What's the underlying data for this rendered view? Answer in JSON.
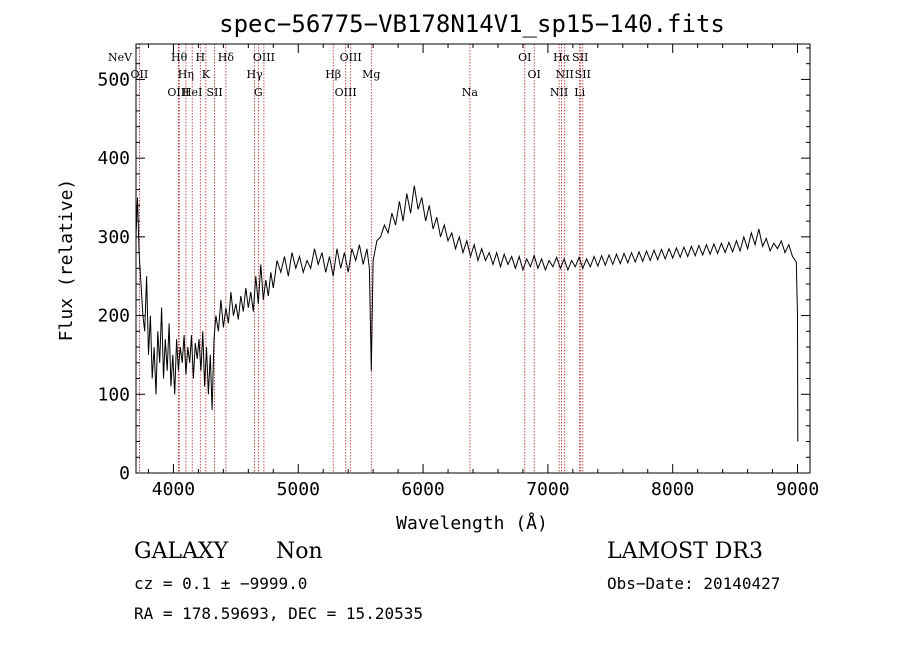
{
  "chart_data": {
    "type": "line",
    "title": "spec−56775−VB178N14V1_sp15−140.fits",
    "xlabel": "Wavelength (Å)",
    "ylabel": "Flux (relative)",
    "xlim": [
      3700,
      9100
    ],
    "ylim": [
      0,
      545
    ],
    "x_ticks": [
      4000,
      5000,
      6000,
      7000,
      8000,
      9000
    ],
    "y_ticks": [
      0,
      100,
      200,
      300,
      400,
      500
    ],
    "line_color": "#000000",
    "marker_color": "#b22222",
    "spectrum": [
      [
        3700,
        300
      ],
      [
        3712,
        350
      ],
      [
        3725,
        280
      ],
      [
        3740,
        240
      ],
      [
        3755,
        200
      ],
      [
        3770,
        180
      ],
      [
        3785,
        250
      ],
      [
        3800,
        150
      ],
      [
        3815,
        200
      ],
      [
        3830,
        120
      ],
      [
        3845,
        160
      ],
      [
        3860,
        100
      ],
      [
        3875,
        180
      ],
      [
        3890,
        140
      ],
      [
        3905,
        210
      ],
      [
        3920,
        120
      ],
      [
        3935,
        170
      ],
      [
        3950,
        130
      ],
      [
        3965,
        190
      ],
      [
        3980,
        110
      ],
      [
        3995,
        150
      ],
      [
        4010,
        100
      ],
      [
        4025,
        170
      ],
      [
        4040,
        130
      ],
      [
        4055,
        160
      ],
      [
        4070,
        140
      ],
      [
        4085,
        175
      ],
      [
        4100,
        125
      ],
      [
        4115,
        160
      ],
      [
        4130,
        140
      ],
      [
        4145,
        175
      ],
      [
        4160,
        120
      ],
      [
        4175,
        165
      ],
      [
        4190,
        145
      ],
      [
        4205,
        170
      ],
      [
        4220,
        130
      ],
      [
        4235,
        180
      ],
      [
        4250,
        110
      ],
      [
        4265,
        160
      ],
      [
        4280,
        100
      ],
      [
        4295,
        150
      ],
      [
        4310,
        80
      ],
      [
        4325,
        170
      ],
      [
        4340,
        200
      ],
      [
        4360,
        180
      ],
      [
        4380,
        220
      ],
      [
        4400,
        185
      ],
      [
        4420,
        210
      ],
      [
        4440,
        190
      ],
      [
        4460,
        230
      ],
      [
        4480,
        200
      ],
      [
        4500,
        215
      ],
      [
        4520,
        195
      ],
      [
        4540,
        225
      ],
      [
        4560,
        205
      ],
      [
        4580,
        235
      ],
      [
        4600,
        210
      ],
      [
        4620,
        230
      ],
      [
        4640,
        205
      ],
      [
        4660,
        250
      ],
      [
        4680,
        215
      ],
      [
        4700,
        265
      ],
      [
        4720,
        220
      ],
      [
        4740,
        245
      ],
      [
        4760,
        225
      ],
      [
        4780,
        255
      ],
      [
        4800,
        235
      ],
      [
        4830,
        270
      ],
      [
        4860,
        255
      ],
      [
        4890,
        275
      ],
      [
        4920,
        250
      ],
      [
        4950,
        280
      ],
      [
        4980,
        260
      ],
      [
        5010,
        275
      ],
      [
        5040,
        255
      ],
      [
        5070,
        270
      ],
      [
        5100,
        260
      ],
      [
        5130,
        285
      ],
      [
        5160,
        265
      ],
      [
        5190,
        280
      ],
      [
        5220,
        255
      ],
      [
        5250,
        275
      ],
      [
        5280,
        250
      ],
      [
        5310,
        285
      ],
      [
        5340,
        260
      ],
      [
        5370,
        280
      ],
      [
        5400,
        255
      ],
      [
        5430,
        285
      ],
      [
        5460,
        270
      ],
      [
        5490,
        290
      ],
      [
        5520,
        265
      ],
      [
        5550,
        285
      ],
      [
        5570,
        260
      ],
      [
        5585,
        130
      ],
      [
        5600,
        270
      ],
      [
        5630,
        295
      ],
      [
        5660,
        300
      ],
      [
        5690,
        315
      ],
      [
        5720,
        305
      ],
      [
        5750,
        330
      ],
      [
        5780,
        315
      ],
      [
        5810,
        345
      ],
      [
        5840,
        320
      ],
      [
        5870,
        355
      ],
      [
        5900,
        330
      ],
      [
        5930,
        365
      ],
      [
        5960,
        335
      ],
      [
        5990,
        350
      ],
      [
        6020,
        320
      ],
      [
        6050,
        340
      ],
      [
        6080,
        310
      ],
      [
        6110,
        325
      ],
      [
        6140,
        300
      ],
      [
        6170,
        315
      ],
      [
        6200,
        295
      ],
      [
        6230,
        305
      ],
      [
        6260,
        285
      ],
      [
        6290,
        300
      ],
      [
        6320,
        280
      ],
      [
        6350,
        295
      ],
      [
        6380,
        275
      ],
      [
        6410,
        290
      ],
      [
        6440,
        270
      ],
      [
        6470,
        285
      ],
      [
        6500,
        270
      ],
      [
        6530,
        280
      ],
      [
        6560,
        265
      ],
      [
        6590,
        280
      ],
      [
        6620,
        262
      ],
      [
        6650,
        278
      ],
      [
        6680,
        265
      ],
      [
        6710,
        275
      ],
      [
        6740,
        260
      ],
      [
        6770,
        275
      ],
      [
        6800,
        258
      ],
      [
        6830,
        272
      ],
      [
        6860,
        262
      ],
      [
        6890,
        276
      ],
      [
        6920,
        260
      ],
      [
        6950,
        272
      ],
      [
        6980,
        258
      ],
      [
        7010,
        270
      ],
      [
        7040,
        262
      ],
      [
        7070,
        274
      ],
      [
        7100,
        260
      ],
      [
        7130,
        272
      ],
      [
        7160,
        258
      ],
      [
        7190,
        270
      ],
      [
        7220,
        262
      ],
      [
        7250,
        274
      ],
      [
        7280,
        260
      ],
      [
        7310,
        272
      ],
      [
        7340,
        262
      ],
      [
        7370,
        275
      ],
      [
        7400,
        263
      ],
      [
        7430,
        276
      ],
      [
        7460,
        264
      ],
      [
        7490,
        277
      ],
      [
        7520,
        265
      ],
      [
        7550,
        278
      ],
      [
        7580,
        266
      ],
      [
        7610,
        279
      ],
      [
        7640,
        267
      ],
      [
        7670,
        280
      ],
      [
        7700,
        268
      ],
      [
        7730,
        281
      ],
      [
        7760,
        269
      ],
      [
        7790,
        282
      ],
      [
        7820,
        270
      ],
      [
        7850,
        283
      ],
      [
        7880,
        271
      ],
      [
        7910,
        284
      ],
      [
        7940,
        272
      ],
      [
        7970,
        285
      ],
      [
        8000,
        273
      ],
      [
        8030,
        286
      ],
      [
        8060,
        274
      ],
      [
        8090,
        287
      ],
      [
        8120,
        275
      ],
      [
        8150,
        288
      ],
      [
        8180,
        276
      ],
      [
        8210,
        289
      ],
      [
        8240,
        277
      ],
      [
        8270,
        290
      ],
      [
        8300,
        278
      ],
      [
        8330,
        291
      ],
      [
        8360,
        279
      ],
      [
        8390,
        292
      ],
      [
        8420,
        280
      ],
      [
        8450,
        293
      ],
      [
        8480,
        281
      ],
      [
        8510,
        295
      ],
      [
        8540,
        282
      ],
      [
        8570,
        300
      ],
      [
        8600,
        285
      ],
      [
        8630,
        305
      ],
      [
        8660,
        290
      ],
      [
        8690,
        310
      ],
      [
        8720,
        288
      ],
      [
        8750,
        298
      ],
      [
        8780,
        282
      ],
      [
        8810,
        292
      ],
      [
        8840,
        285
      ],
      [
        8870,
        295
      ],
      [
        8900,
        280
      ],
      [
        8930,
        290
      ],
      [
        8960,
        275
      ],
      [
        8990,
        268
      ],
      [
        9000,
        200
      ],
      [
        9002,
        40
      ]
    ],
    "lines": [
      {
        "label": "NeV",
        "x": 3426
      },
      {
        "label": "OII",
        "x": 3727
      },
      {
        "label": "OIII",
        "x": 4040
      },
      {
        "label": "Hθ",
        "x": 4045
      },
      {
        "label": "Hη",
        "x": 4100
      },
      {
        "label": "HeI",
        "x": 4150
      },
      {
        "label": "H",
        "x": 4215
      },
      {
        "label": "K",
        "x": 4260
      },
      {
        "label": "SII",
        "x": 4330
      },
      {
        "label": "Hδ",
        "x": 4420
      },
      {
        "label": "Hγ",
        "x": 4650
      },
      {
        "label": "G",
        "x": 4680
      },
      {
        "label": "OIII",
        "x": 4725
      },
      {
        "label": "Hβ",
        "x": 5280
      },
      {
        "label": "OIII",
        "x": 5380
      },
      {
        "label": "OIII",
        "x": 5420
      },
      {
        "label": "Mg",
        "x": 5585
      },
      {
        "label": "Na",
        "x": 6375
      },
      {
        "label": "OI",
        "x": 6815
      },
      {
        "label": "OI",
        "x": 6890
      },
      {
        "label": "NII",
        "x": 7090
      },
      {
        "label": "Hα",
        "x": 7110
      },
      {
        "label": "NII",
        "x": 7135
      },
      {
        "label": "Li",
        "x": 7255
      },
      {
        "label": "SII",
        "x": 7260
      },
      {
        "label": "SII",
        "x": 7280
      }
    ]
  },
  "info": {
    "class_label": "GALAXY",
    "subclass_label": "Non",
    "survey_label": "LAMOST DR3",
    "cz_line": "cz = 0.1 ± −9999.0",
    "obs_date_line": "Obs−Date: 20140427",
    "radec_line": "RA = 178.59693, DEC =  15.20535"
  }
}
